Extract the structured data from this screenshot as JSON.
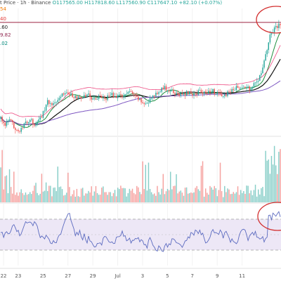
{
  "header": {
    "title": "t Price · 1h · Binance",
    "ohlc": "O117565.00 H117818.60 L117560.90 C117647.10 +82.10 (+0.07%)"
  },
  "price_labels": [
    {
      "text": "54",
      "color": "#f57c00"
    },
    {
      "text": "40",
      "color": "#e53935"
    },
    {
      "text": ".60",
      "color": "#222222"
    },
    {
      "text": "9.82",
      "color": "#8e244d"
    },
    {
      "text": ".02",
      "color": "#00897b"
    }
  ],
  "colors": {
    "up": "#26a69a",
    "down": "#ef5350",
    "ema_fast": "#1e8e3e",
    "ema_mid": "#111111",
    "ema_slow": "#7e57c2",
    "bb": "#e91e63",
    "rsi": "#5c6bc0",
    "rsi_band": "#ede7f6",
    "hline": "#9c2440",
    "annotation": "#d32f2f"
  },
  "chart_data": {
    "type": "candlestick",
    "x_ticks": [
      "22",
      "23",
      "25",
      "27",
      "29",
      "Jul",
      "3",
      "5",
      "7",
      "9",
      "11"
    ],
    "price": {
      "ylim": [
        106500,
        120500
      ],
      "horizontal_line": 118950,
      "close_anchors": [
        [
          0,
          108400
        ],
        [
          3,
          107600
        ],
        [
          6,
          108100
        ],
        [
          10,
          107300
        ],
        [
          13,
          106800
        ],
        [
          16,
          107600
        ],
        [
          20,
          108200
        ],
        [
          24,
          107500
        ],
        [
          28,
          108600
        ],
        [
          32,
          110200
        ],
        [
          36,
          109900
        ],
        [
          40,
          110800
        ],
        [
          44,
          111200
        ],
        [
          48,
          111000
        ],
        [
          52,
          110500
        ],
        [
          56,
          110700
        ],
        [
          60,
          110900
        ],
        [
          64,
          110400
        ],
        [
          68,
          110800
        ],
        [
          72,
          110600
        ],
        [
          76,
          111000
        ],
        [
          80,
          110700
        ],
        [
          84,
          110900
        ],
        [
          88,
          111200
        ],
        [
          92,
          110700
        ],
        [
          96,
          110200
        ],
        [
          100,
          109900
        ],
        [
          104,
          110800
        ],
        [
          108,
          111400
        ],
        [
          112,
          111700
        ],
        [
          116,
          111300
        ],
        [
          120,
          111100
        ],
        [
          124,
          110900
        ],
        [
          128,
          111200
        ],
        [
          132,
          111000
        ],
        [
          136,
          111300
        ],
        [
          140,
          111100
        ],
        [
          144,
          111500
        ],
        [
          148,
          111000
        ],
        [
          152,
          110800
        ],
        [
          156,
          111200
        ],
        [
          160,
          111600
        ],
        [
          164,
          111900
        ],
        [
          168,
          111600
        ],
        [
          172,
          111800
        ],
        [
          176,
          112600
        ],
        [
          180,
          114500
        ],
        [
          184,
          117500
        ],
        [
          188,
          118400
        ],
        [
          191,
          118700
        ]
      ],
      "ma_lines": [
        {
          "name": "fast",
          "period": 10
        },
        {
          "name": "mid",
          "period": 24
        },
        {
          "name": "slow",
          "period": 70
        }
      ]
    },
    "volume": {
      "ylim": [
        0,
        100
      ]
    },
    "rsi": {
      "ylim": [
        10,
        90
      ],
      "upper": 70,
      "lower": 30,
      "mid": 50
    }
  },
  "annotations": [
    "circle-price-peak",
    "circle-rsi-peak"
  ]
}
